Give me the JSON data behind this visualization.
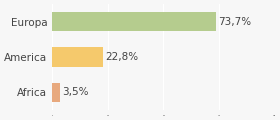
{
  "categories": [
    "Europa",
    "America",
    "Africa"
  ],
  "values": [
    73.7,
    22.8,
    3.5
  ],
  "labels": [
    "73,7%",
    "22,8%",
    "3,5%"
  ],
  "bar_colors": [
    "#b5cc8e",
    "#f5c96c",
    "#e8a97e"
  ],
  "background_color": "#f7f7f7",
  "xlim": [
    0,
    100
  ],
  "label_fontsize": 7.5,
  "tick_fontsize": 7.5
}
